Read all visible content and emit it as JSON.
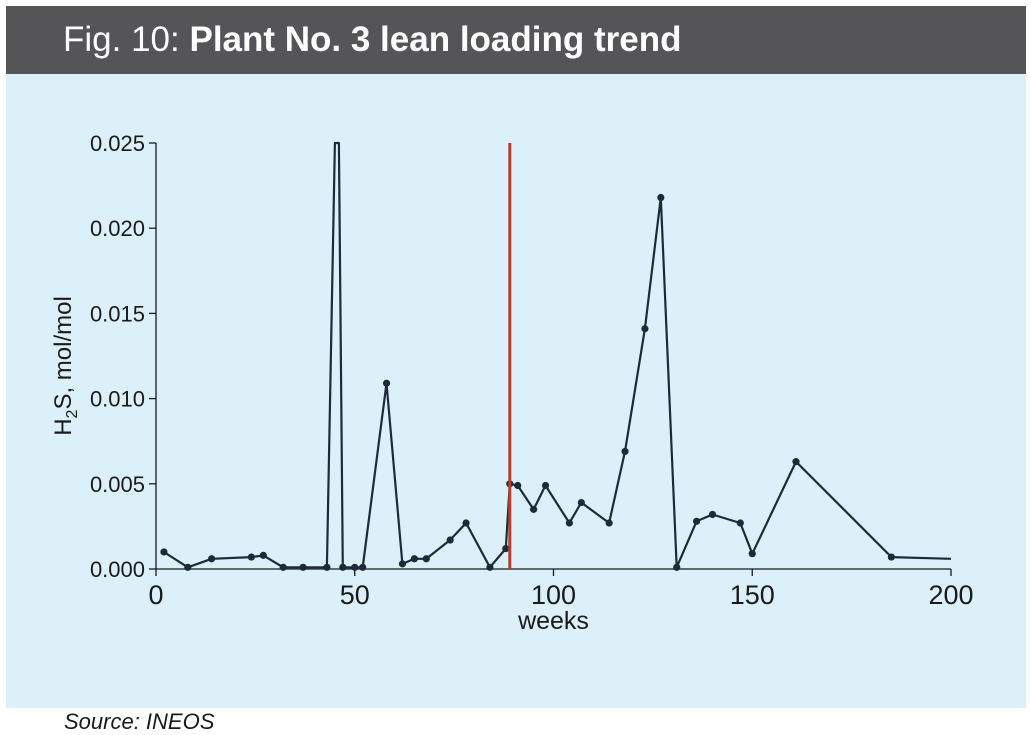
{
  "header": {
    "title_prefix": "Fig. 10:",
    "title": "Plant No. 3 lean loading trend"
  },
  "source": "Source: INEOS",
  "colors": {
    "header_bg": "#555456",
    "panel_bg": "#dcf0fa",
    "series": "#1c2b3a",
    "marker_line": "#c0392b"
  },
  "chart_data": {
    "type": "line",
    "title": "",
    "xlabel": "weeks",
    "ylabel_main": "H",
    "ylabel_sub": "2",
    "ylabel_rest": "S, mol/mol",
    "xlim": [
      0,
      200
    ],
    "ylim": [
      0,
      0.025
    ],
    "x_ticks": [
      0,
      50,
      100,
      150,
      200
    ],
    "x_tick_labels": [
      "0",
      "50",
      "100",
      "150",
      "200"
    ],
    "y_ticks": [
      0,
      0.005,
      0.01,
      0.015,
      0.02,
      0.025
    ],
    "y_tick_labels": [
      "0.000",
      "0.005",
      "0.010",
      "0.015",
      "0.020",
      "0.025"
    ],
    "grid": false,
    "legend": "none",
    "vertical_marker_x": 89,
    "series": [
      {
        "points": [
          [
            2,
            0.001
          ],
          [
            8,
            0.0001
          ],
          [
            14,
            0.0006
          ],
          [
            24,
            0.0007
          ],
          [
            27,
            0.0008
          ],
          [
            32,
            0.0001
          ],
          [
            37,
            0.0001
          ],
          [
            43,
            0.0001
          ],
          [
            45,
            0.025
          ],
          [
            46,
            0.025
          ],
          [
            47,
            0.0001
          ],
          [
            50,
            0.0001
          ],
          [
            52,
            0.0001
          ],
          [
            58,
            0.0109
          ],
          [
            62,
            0.0003
          ],
          [
            65,
            0.0006
          ],
          [
            68,
            0.0006
          ],
          [
            74,
            0.0017
          ],
          [
            78,
            0.0027
          ],
          [
            84,
            0.0001
          ],
          [
            88,
            0.0012
          ],
          [
            89,
            0.005
          ],
          [
            91,
            0.0049
          ],
          [
            95,
            0.0035
          ],
          [
            98,
            0.0049
          ],
          [
            104,
            0.0027
          ],
          [
            107,
            0.0039
          ],
          [
            114,
            0.0027
          ],
          [
            118,
            0.0069
          ],
          [
            123,
            0.0141
          ],
          [
            127,
            0.0218
          ],
          [
            131,
            0.0001
          ],
          [
            136,
            0.0028
          ],
          [
            140,
            0.0032
          ],
          [
            147,
            0.0027
          ],
          [
            150,
            0.0009
          ],
          [
            161,
            0.0063
          ],
          [
            185,
            0.0007
          ],
          [
            200,
            0.0006
          ]
        ],
        "markers": [
          [
            2,
            0.001
          ],
          [
            8,
            0.0001
          ],
          [
            14,
            0.0006
          ],
          [
            24,
            0.0007
          ],
          [
            27,
            0.0008
          ],
          [
            32,
            0.0001
          ],
          [
            37,
            0.0001
          ],
          [
            43,
            0.0001
          ],
          [
            47,
            0.0001
          ],
          [
            50,
            0.0001
          ],
          [
            52,
            0.0001
          ],
          [
            58,
            0.0109
          ],
          [
            62,
            0.0003
          ],
          [
            65,
            0.0006
          ],
          [
            68,
            0.0006
          ],
          [
            74,
            0.0017
          ],
          [
            78,
            0.0027
          ],
          [
            84,
            0.0001
          ],
          [
            88,
            0.0012
          ],
          [
            89,
            0.005
          ],
          [
            91,
            0.0049
          ],
          [
            95,
            0.0035
          ],
          [
            98,
            0.0049
          ],
          [
            104,
            0.0027
          ],
          [
            107,
            0.0039
          ],
          [
            114,
            0.0027
          ],
          [
            118,
            0.0069
          ],
          [
            123,
            0.0141
          ],
          [
            127,
            0.0218
          ],
          [
            131,
            0.0001
          ],
          [
            136,
            0.0028
          ],
          [
            140,
            0.0032
          ],
          [
            147,
            0.0027
          ],
          [
            150,
            0.0009
          ],
          [
            161,
            0.0063
          ],
          [
            185,
            0.0007
          ]
        ]
      }
    ]
  }
}
